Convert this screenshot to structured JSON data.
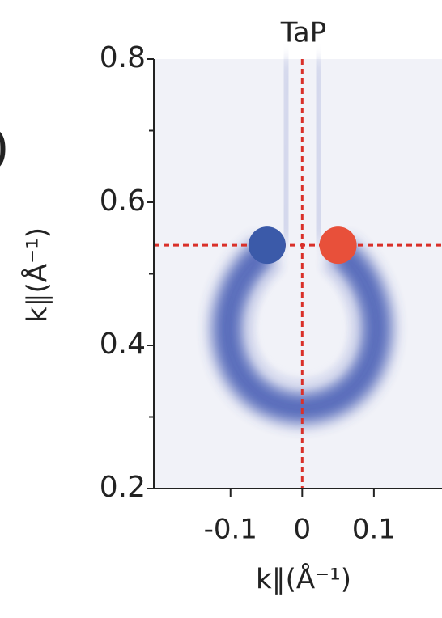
{
  "chart_data": {
    "type": "scatter",
    "title": "TaP",
    "xlabel": "k∥(Å⁻¹)",
    "ylabel": "k∥(Å⁻¹)",
    "fragment": ")",
    "series": [
      {
        "name": null,
        "color": "#3b5aa9",
        "x": [
          -0.049
        ],
        "values": [
          0.54
        ]
      },
      {
        "name": null,
        "color": "#e8503a",
        "x": [
          0.05
        ],
        "values": [
          0.54
        ]
      }
    ],
    "xlim": [
      -0.207,
      0.195
    ],
    "ylim": [
      0.2,
      0.8
    ],
    "xticks": [
      -0.1,
      0,
      0.1
    ],
    "yticks": [
      0.2,
      0.4,
      0.6,
      0.8
    ],
    "yminorticks": [
      0.3,
      0.5,
      0.7
    ],
    "guide_color": "#d9302a",
    "guide_x": 0,
    "guide_y": 0.54
  }
}
